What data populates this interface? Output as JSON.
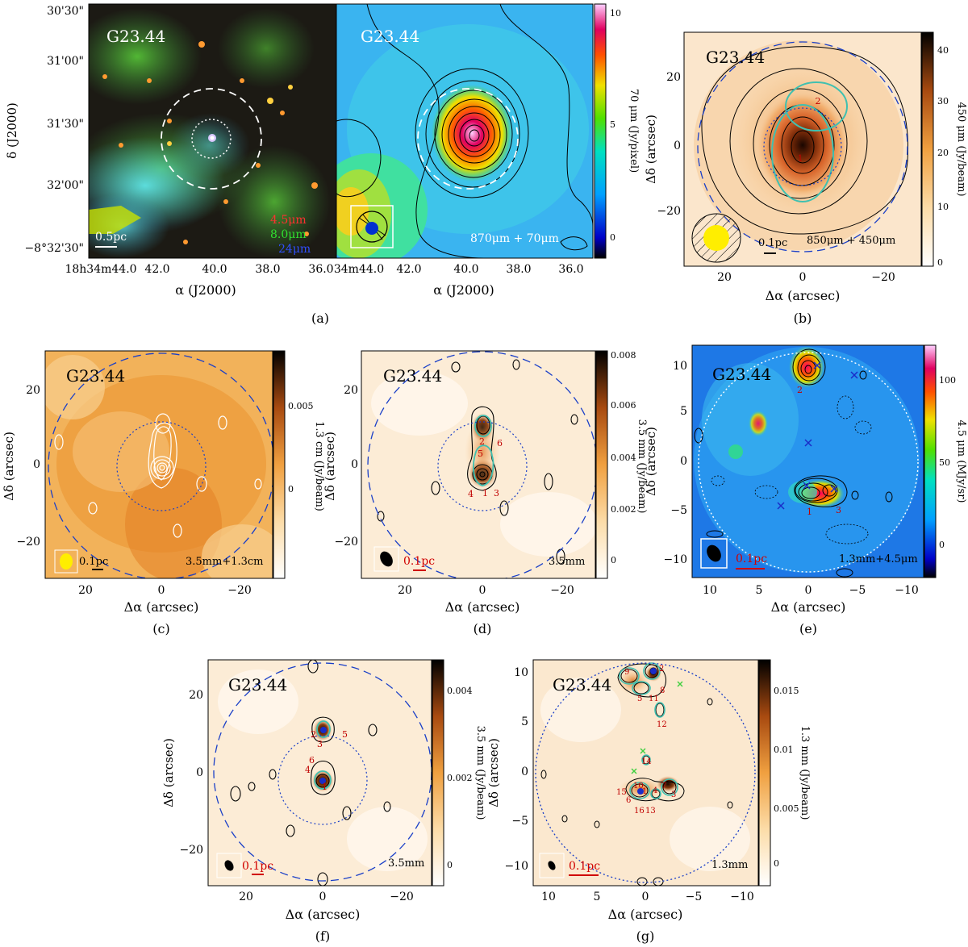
{
  "figure": {
    "source_name": "G23.44",
    "panels": {
      "a_left": {
        "ticks_y": [
          "30'30\"",
          "31'00\"",
          "31'30\"",
          "32'00\"",
          "−8°32'30\""
        ],
        "ticks_x": [
          "18h34m44.0",
          "42.0",
          "40.0",
          "38.0",
          "36.0"
        ],
        "ylabel": "δ (J2000)",
        "xlabel": "α (J2000)",
        "legend": [
          "4.5μm",
          "8.0μm",
          "24μm"
        ],
        "scalebar": "0.5pc"
      },
      "a_right": {
        "ticks_x": [
          "34m44.0",
          "42.0",
          "40.0",
          "38.0",
          "36.0"
        ],
        "xlabel": "α (J2000)",
        "caption_in": "870μm + 70μm",
        "cbar_label": "70 μm (Jy/pixel)",
        "cbar_ticks": [
          "10",
          "5",
          "0"
        ]
      },
      "a_label": "(a)",
      "b": {
        "label": "(b)",
        "ticks_y": [
          "20",
          "0",
          "−20"
        ],
        "ticks_x": [
          "20",
          "0",
          "−20"
        ],
        "xlabel": "Δα (arcsec)",
        "ylabel": "Δδ (arcsec)",
        "caption_in": "850μm + 450μm",
        "scalebar": "0.1pc",
        "cbar_label": "450 μm (Jy/beam)",
        "cbar_ticks": [
          "40",
          "30",
          "20",
          "10",
          "0"
        ],
        "cores": [
          "1",
          "2"
        ]
      },
      "c": {
        "label": "(c)",
        "ticks_y": [
          "20",
          "0",
          "−20"
        ],
        "ticks_x": [
          "20",
          "0",
          "−20"
        ],
        "xlabel": "Δα (arcsec)",
        "ylabel": "Δδ (arcsec)",
        "caption_in": "3.5mm+1.3cm",
        "scalebar": "0.1pc",
        "cbar_label": "1.3 cm (Jy/beam)",
        "cbar_ticks": [
          "0.005",
          "0"
        ]
      },
      "d": {
        "label": "(d)",
        "ticks_y": [
          "20",
          "0",
          "−20"
        ],
        "ticks_x": [
          "20",
          "0",
          "−20"
        ],
        "xlabel": "Δα (arcsec)",
        "ylabel": "Δδ (arcsec)",
        "caption_in": "3.5mm",
        "scalebar": "0.1pc",
        "cbar_label": "3.5 mm (Jy/beam)",
        "cbar_ticks": [
          "0.008",
          "0.006",
          "0.004",
          "0.002",
          "0"
        ],
        "cores": [
          "2",
          "6",
          "5",
          "4",
          "1",
          "3"
        ]
      },
      "e": {
        "label": "(e)",
        "ticks_y": [
          "10",
          "5",
          "0",
          "−5",
          "−10"
        ],
        "ticks_x": [
          "10",
          "5",
          "0",
          "−5",
          "−10"
        ],
        "xlabel": "Δα (arcsec)",
        "ylabel": "Δδ (arcsec)",
        "caption_in": "1.3mm+4.5μm",
        "scalebar": "0.1pc",
        "cbar_label": "4.5 μm (MJy/sr)",
        "cbar_ticks": [
          "100",
          "50",
          "0"
        ],
        "cores": [
          "2",
          "1",
          "3"
        ]
      },
      "f": {
        "label": "(f)",
        "ticks_y": [
          "20",
          "0",
          "−20"
        ],
        "ticks_x": [
          "20",
          "0",
          "−20"
        ],
        "xlabel": "Δα (arcsec)",
        "ylabel": "Δδ (arcsec)",
        "caption_in": "3.5mm",
        "scalebar": "0.1pc",
        "cbar_label": "3.5 mm (Jy/beam)",
        "cbar_ticks": [
          "0.004",
          "0.002",
          "0"
        ],
        "cores": [
          "2",
          "5",
          "3",
          "6",
          "4",
          "1"
        ]
      },
      "g": {
        "label": "(g)",
        "ticks_y": [
          "10",
          "5",
          "0",
          "−5",
          "−10"
        ],
        "ticks_x": [
          "10",
          "5",
          "0",
          "−5",
          "−10"
        ],
        "xlabel": "Δα (arcsec)",
        "ylabel": "Δδ (arcsec)",
        "caption_in": "1.3mm",
        "scalebar": "0.1pc",
        "cbar_label": "1.3 mm (Jy/beam)",
        "cbar_ticks": [
          "0.015",
          "0.01",
          "0.005",
          "0"
        ],
        "cores": [
          "9",
          "2",
          "5",
          "11",
          "8",
          "12",
          "14",
          "10",
          "15",
          "7",
          "1",
          "4",
          "6",
          "3",
          "16",
          "13"
        ]
      }
    }
  }
}
